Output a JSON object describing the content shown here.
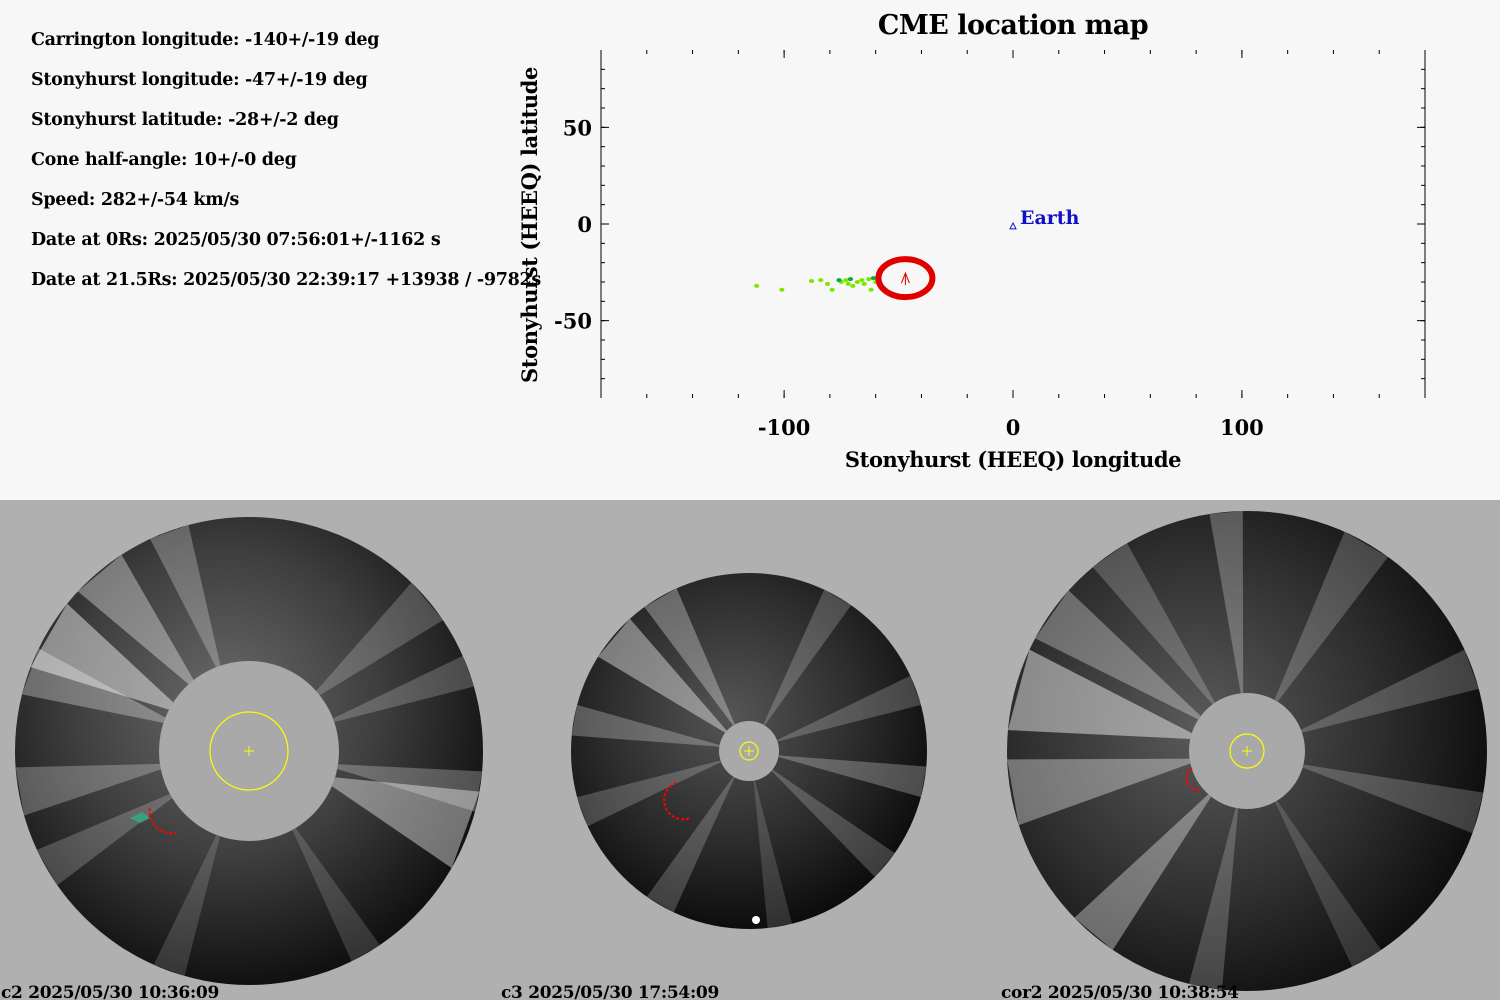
{
  "info": [
    "Carrington longitude: -140+/-19 deg",
    "Stonyhurst longitude: -47+/-19 deg",
    "Stonyhurst latitude: -28+/-2 deg",
    "Cone half-angle: 10+/-0 deg",
    "Speed: 282+/-54 km/s",
    "Date at 0Rs: 2025/05/30 07:56:01+/-1162 s",
    "Date at 21.5Rs: 2025/05/30 22:39:17 +13938 / -9782s"
  ],
  "chart_data": {
    "type": "scatter",
    "title": "CME location map",
    "xlabel": "Stonyhurst (HEEQ) longitude",
    "ylabel": "Stonyhurst (HEEQ) latitude",
    "xlim": [
      -180,
      180
    ],
    "ylim": [
      -90,
      90
    ],
    "xticks": [
      -100,
      0,
      100
    ],
    "yticks": [
      50,
      0,
      -50
    ],
    "earth": {
      "label": "Earth",
      "lon": 0,
      "lat": -1,
      "color": "#1010c8"
    },
    "cme": {
      "lon": -47,
      "lat": -28,
      "color": "#e00000"
    },
    "series": [
      {
        "color": "#7ce800",
        "points": [
          [
            -112,
            -32
          ],
          [
            -101,
            -34
          ],
          [
            -88,
            -29.5
          ],
          [
            -84,
            -29
          ],
          [
            -81,
            -31
          ],
          [
            -79,
            -34
          ],
          [
            -75,
            -30
          ],
          [
            -73,
            -29
          ],
          [
            -72,
            -31
          ],
          [
            -70,
            -32
          ],
          [
            -68,
            -30
          ],
          [
            -66,
            -29
          ],
          [
            -65,
            -31
          ],
          [
            -63,
            -28.5
          ],
          [
            -62,
            -34
          ],
          [
            -60,
            -30
          ]
        ]
      },
      {
        "color": "#00b030",
        "points": [
          [
            -76,
            -29
          ],
          [
            -71,
            -28.5
          ],
          [
            -61,
            -28
          ]
        ]
      }
    ]
  },
  "panels": [
    {
      "label": "c2 2025/05/30 10:36:09"
    },
    {
      "label": "c3 2025/05/30 17:54:09"
    },
    {
      "label": "cor2 2025/05/30 10:38:54"
    }
  ]
}
